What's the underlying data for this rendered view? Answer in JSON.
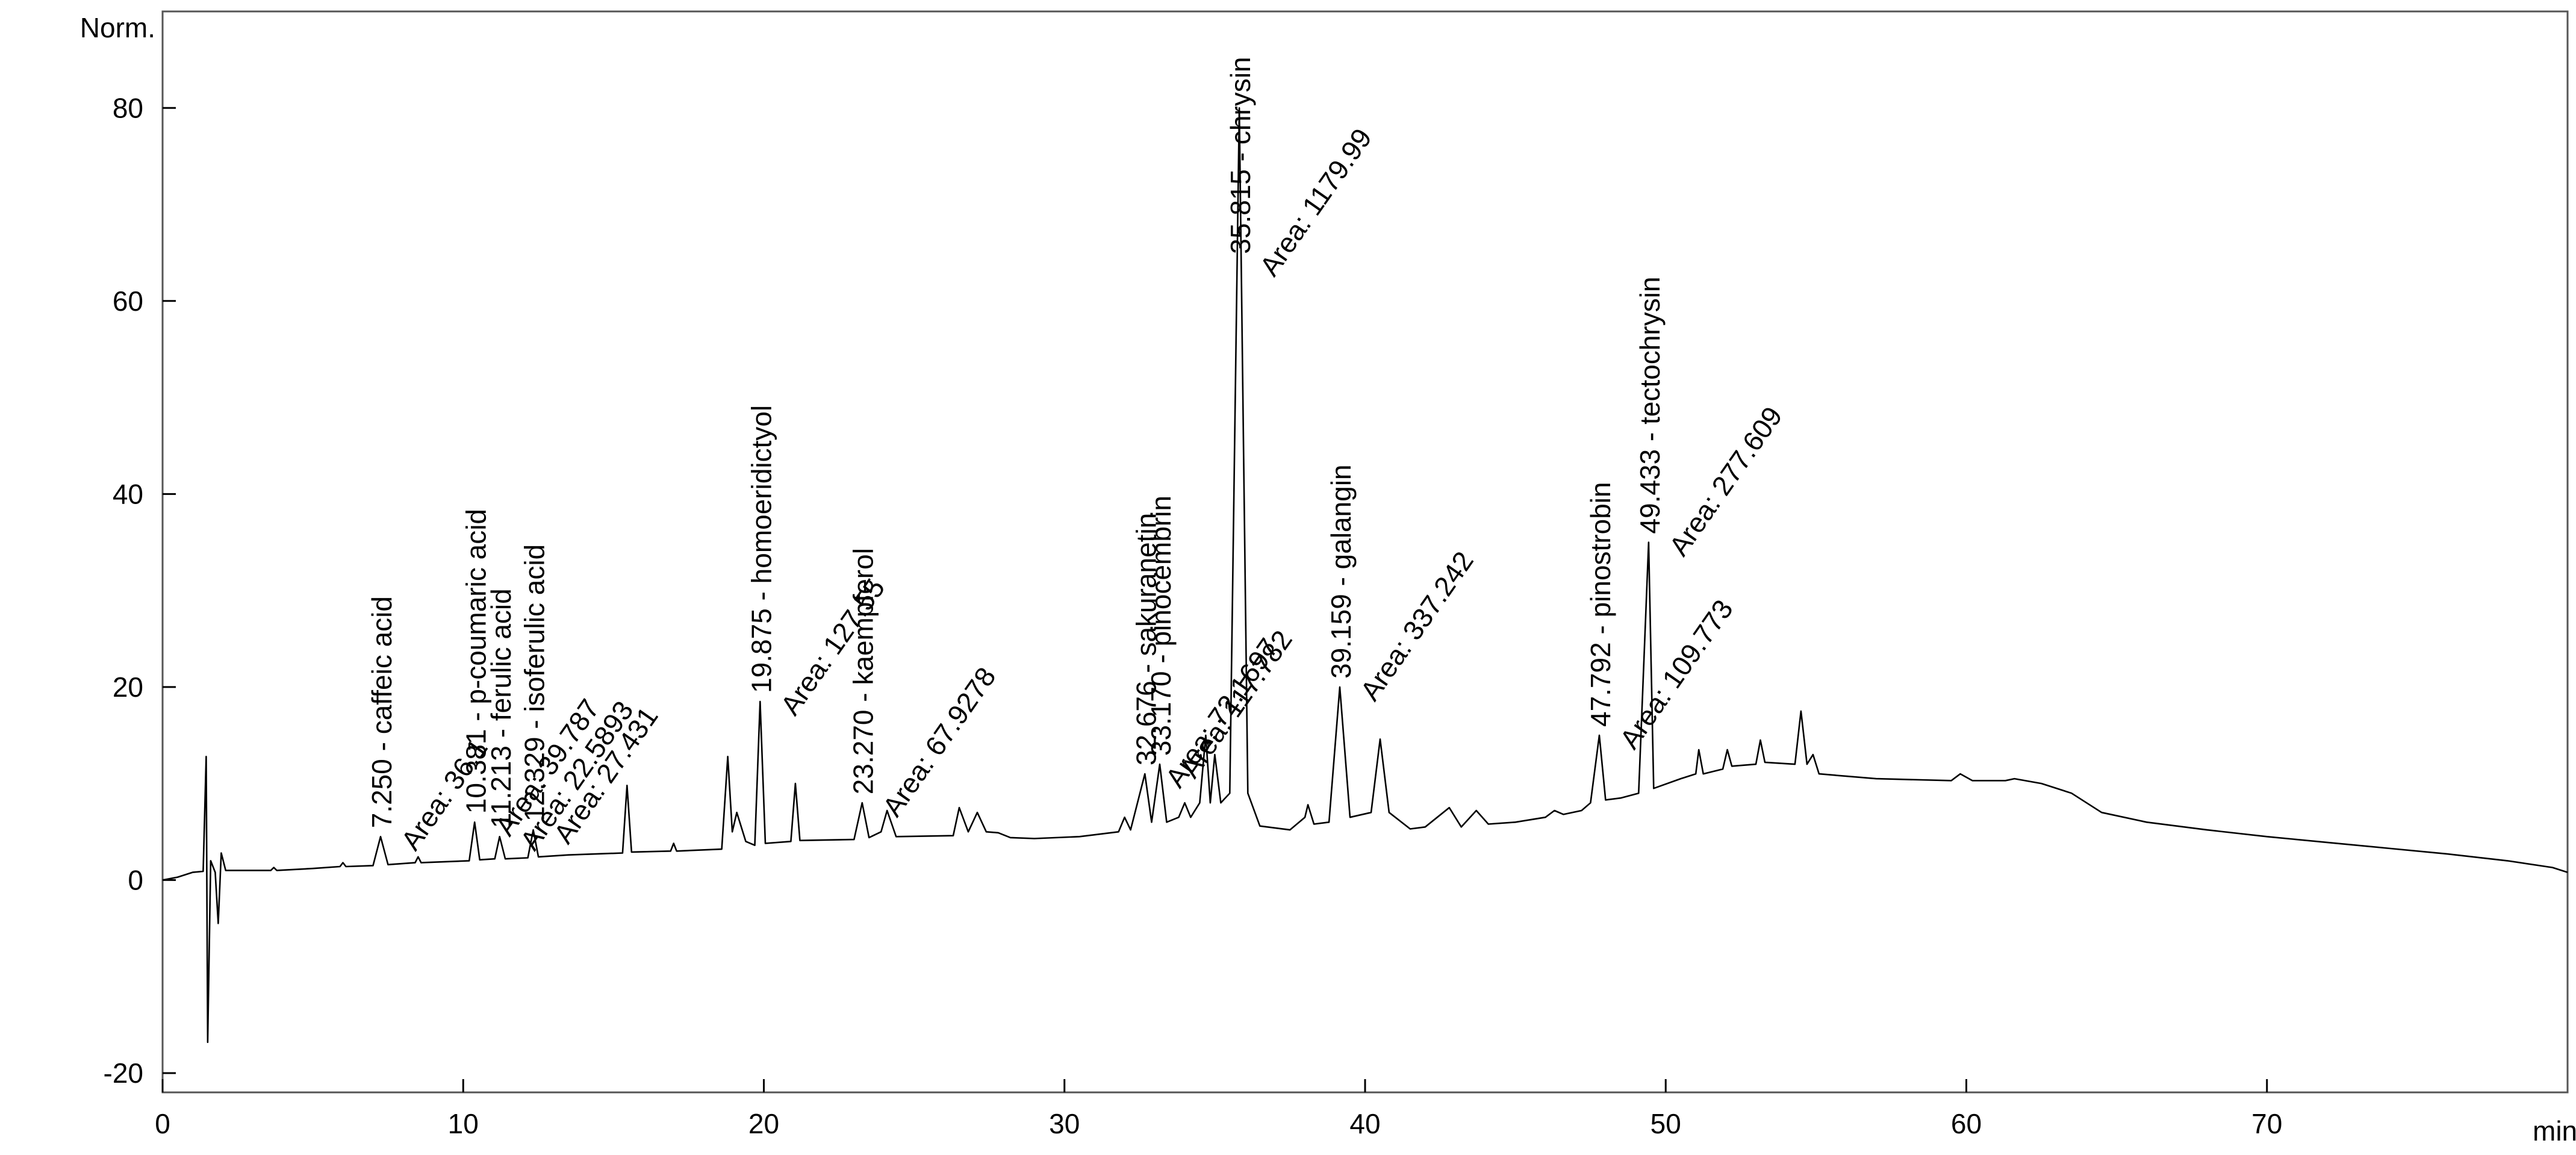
{
  "chart_data": {
    "type": "line",
    "y_label": "Norm.",
    "x_label": "min",
    "xlim": [
      0,
      80
    ],
    "xticks": [
      0,
      10,
      20,
      30,
      40,
      50,
      60,
      70
    ],
    "ylim": [
      -22,
      90
    ],
    "yticks": [
      -20,
      0,
      20,
      40,
      60,
      80
    ],
    "color": "#000000",
    "x": [
      0,
      0.5,
      1.0,
      1.35,
      1.45,
      1.5,
      1.6,
      1.75,
      1.85,
      1.95,
      2.1,
      3,
      3.6,
      3.7,
      3.8,
      5,
      5.9,
      6,
      6.1,
      7.0,
      7.25,
      7.5,
      8.4,
      8.5,
      8.6,
      10.2,
      10.38,
      10.55,
      11.05,
      11.21,
      11.4,
      12.15,
      12.33,
      12.5,
      13.5,
      15.3,
      15.45,
      15.6,
      16.9,
      17.0,
      17.1,
      18.6,
      18.8,
      18.95,
      19.1,
      19.4,
      19.7,
      19.875,
      20.05,
      20.9,
      21.05,
      21.2,
      23.0,
      23.27,
      23.5,
      23.9,
      24.1,
      24.4,
      26.3,
      26.5,
      26.8,
      27.1,
      27.4,
      27.8,
      28.2,
      29.0,
      30.5,
      31.8,
      32.0,
      32.2,
      32.676,
      32.9,
      33.17,
      33.4,
      33.8,
      34.0,
      34.2,
      34.5,
      34.7,
      34.85,
      35.0,
      35.2,
      35.5,
      35.815,
      36.1,
      36.5,
      37.5,
      38.0,
      38.1,
      38.3,
      38.8,
      39.159,
      39.5,
      40.2,
      40.5,
      40.8,
      41.5,
      42,
      42.8,
      43.2,
      43.7,
      44.1,
      45,
      46,
      46.3,
      46.6,
      47.2,
      47.5,
      47.792,
      48.0,
      48.5,
      49.1,
      49.433,
      49.6,
      50.5,
      51.0,
      51.1,
      51.25,
      51.9,
      52.05,
      52.2,
      53.0,
      53.15,
      53.3,
      54.3,
      54.5,
      54.7,
      54.9,
      55.1,
      57,
      59.5,
      59.8,
      60.2,
      61.3,
      61.6,
      62.5,
      63.5,
      64.5,
      66,
      68,
      70,
      72,
      74,
      76,
      78,
      79.5,
      80
    ],
    "values": [
      0,
      0.3,
      0.8,
      0.9,
      12.8,
      -16.8,
      2,
      0.8,
      -4.5,
      2.8,
      1.0,
      1.0,
      1.0,
      1.3,
      1.0,
      1.2,
      1.4,
      1.8,
      1.4,
      1.5,
      4.5,
      1.6,
      1.8,
      2.4,
      1.8,
      2.0,
      6,
      2.1,
      2.2,
      4.5,
      2.2,
      2.3,
      5.2,
      2.4,
      2.6,
      2.8,
      9.8,
      2.9,
      3.0,
      3.8,
      3.0,
      3.2,
      12.8,
      5,
      7,
      4,
      3.6,
      18.5,
      3.8,
      4.0,
      10,
      4.1,
      4.2,
      8,
      4.4,
      5,
      7.2,
      4.5,
      4.6,
      7.5,
      5,
      7,
      5,
      4.9,
      4.4,
      4.3,
      4.5,
      5,
      6.5,
      5.2,
      11,
      6,
      12,
      6,
      6.5,
      8,
      6.5,
      8,
      15,
      8,
      13,
      8,
      9,
      80,
      9,
      5.6,
      5.2,
      6.5,
      7.8,
      5.8,
      6,
      20,
      6.5,
      7,
      14.6,
      7,
      5.3,
      5.5,
      7.5,
      5.5,
      7.2,
      5.8,
      6,
      6.5,
      7.2,
      6.8,
      7.2,
      8,
      15,
      8.3,
      8.5,
      9,
      35,
      9.5,
      10.5,
      11,
      13.5,
      11,
      11.5,
      13.5,
      11.8,
      12,
      14.5,
      12.2,
      12,
      17.5,
      12,
      13,
      11,
      10.5,
      10.3,
      11,
      10.3,
      10.3,
      10.5,
      10,
      9,
      7,
      6,
      5.2,
      4.5,
      3.9,
      3.3,
      2.7,
      2,
      1.3,
      0.8
    ],
    "annotations": [
      {
        "label": "7.250 -  caffeic acid",
        "area": "Area: 36.1"
      },
      {
        "label": "10.381 -  p-coumaric acid",
        "area": "Area: 39.787"
      },
      {
        "label": "11.213 -  ferulic acid",
        "area": "Area: 22.5893"
      },
      {
        "label": "12.329 -  isoferulic acid",
        "area": "Area: 27.431"
      },
      {
        "label": "19.875 -  homoeridictyol",
        "area": "Area: 127.55"
      },
      {
        "label": "23.270 -  kaempferol",
        "area": "Area: 67.9278"
      },
      {
        "label": "32.676 -  sakuranetin",
        "area": "Area: 72.1697"
      },
      {
        "label": "33.170 -  pinocembrin",
        "area": "Area: 117.782"
      },
      {
        "label": "35.815 -  chrysin",
        "area": "Area: 1179.99"
      },
      {
        "label": "39.159 -  galangin",
        "area": "Area: 337.242"
      },
      {
        "label": "47.792 -  pinostrobin",
        "area": "Area: 109.773"
      },
      {
        "label": "49.433 -  tectochrysin",
        "area": "Area: 277.609"
      }
    ]
  }
}
